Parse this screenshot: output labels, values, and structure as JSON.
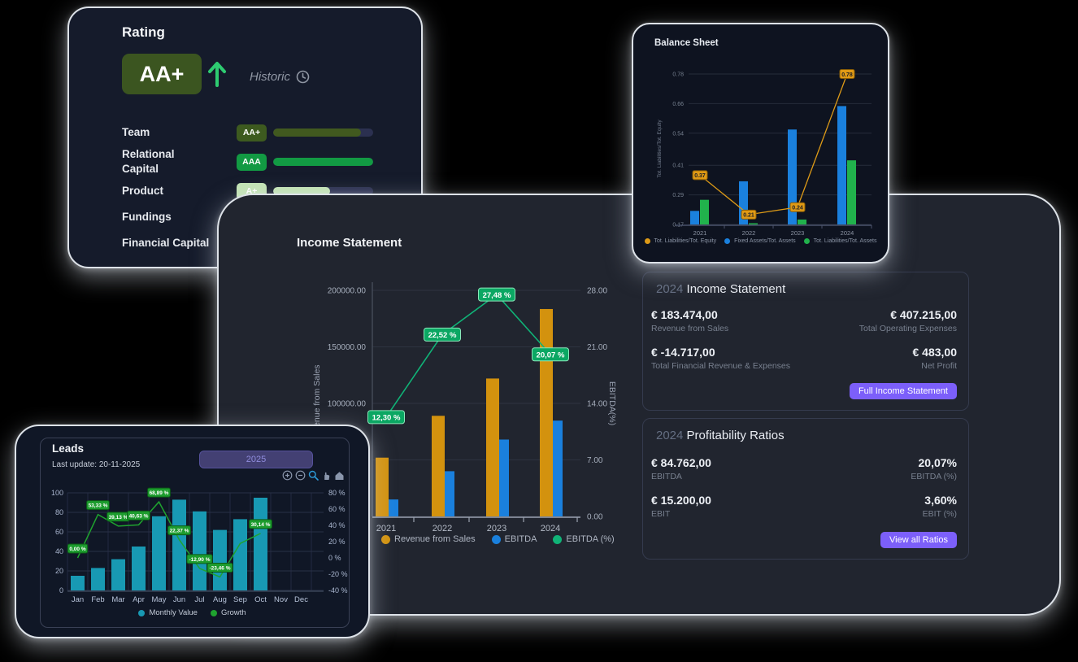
{
  "rating_card": {
    "title": "Rating",
    "main_grade": "AA+",
    "historic_label": "Historic",
    "main_badge_bg": "#3b5520",
    "arrow_color": "#2ecc71",
    "categories": [
      {
        "label": "Team",
        "grade": "AA+",
        "badge_bg": "#3d5a1f",
        "badge_text": "#ffffff",
        "bar_color": "#41591f",
        "fill_pct": 88
      },
      {
        "label": "Relational\nCapital",
        "grade": "AAA",
        "badge_bg": "#129a43",
        "badge_text": "#ffffff",
        "bar_color": "#129a43",
        "fill_pct": 100
      },
      {
        "label": "Product",
        "grade": "A+",
        "badge_bg": "#c3e3b5",
        "badge_text": "#ffffff",
        "bar_color": "#c3e3b5",
        "fill_pct": 57
      },
      {
        "label": "Fundings",
        "grade": null
      },
      {
        "label": "Financial Capital",
        "grade": null
      }
    ]
  },
  "balance_sheet_card": {
    "title": "Balance Sheet",
    "chart": {
      "type": "bar+line",
      "categories": [
        "2021",
        "2022",
        "2023",
        "2024"
      ],
      "y_axis_label": "Tot. Liabilities/Tot. Equity",
      "y_ticks": [
        "0.78",
        "0.66",
        "0.54",
        "0.41",
        "0.29",
        "0.17"
      ],
      "y_min": 0.17,
      "y_max": 0.78,
      "series": [
        {
          "name": "Tot. Liabilities/Tot. Equity",
          "type": "line",
          "color": "#dd9a17",
          "values": [
            0.37,
            0.21,
            0.24,
            0.78
          ],
          "point_labels": [
            "0.37",
            "0.21",
            "0.24",
            "0.78"
          ]
        },
        {
          "name": "Fixed Assets/Tot. Assets",
          "type": "bar",
          "color": "#1a80dd",
          "values": [
            0.225,
            0.345,
            0.555,
            0.65
          ]
        },
        {
          "name": "Tot. Liabilities/Tot. Assets",
          "type": "bar",
          "color": "#21b24c",
          "values": [
            0.27,
            0.175,
            0.19,
            0.43
          ]
        }
      ],
      "legend_position": "bottom"
    }
  },
  "income_card": {
    "title": "Income Statement",
    "accent_color": "#7c5ffa",
    "chart": {
      "type": "bar+line",
      "categories": [
        "2021",
        "2022",
        "2023",
        "2024"
      ],
      "left_axis": {
        "label": "Revenue from Sales",
        "ticks": [
          "200000.00",
          "150000.00",
          "100000.00",
          "50000.00",
          "0.00"
        ],
        "max": 200000
      },
      "right_axis": {
        "label": "EBITDA(%)",
        "ticks": [
          "28.00",
          "21.00",
          "14.00",
          "7.00",
          "0.00"
        ],
        "max": 28
      },
      "series": [
        {
          "name": "Revenue from Sales",
          "type": "bar",
          "axis": "left",
          "color": "#d3920e",
          "values": [
            52000,
            89000,
            122000,
            183474
          ]
        },
        {
          "name": "EBITDA",
          "type": "bar",
          "axis": "left",
          "color": "#1a80dd",
          "values": [
            15000,
            40000,
            68000,
            84762
          ]
        },
        {
          "name": "EBITDA (%)",
          "type": "line",
          "axis": "right",
          "color": "#10b377",
          "values": [
            12.3,
            22.52,
            27.48,
            20.07
          ],
          "point_labels": [
            "12,30 %",
            "22,52 %",
            "27,48 %",
            "20,07 %"
          ]
        }
      ],
      "legend_position": "bottom"
    },
    "panels": [
      {
        "year": "2024",
        "title": "Income Statement",
        "metrics": [
          {
            "value": "€ 183.474,00",
            "label": "Revenue from Sales"
          },
          {
            "value": "€ 407.215,00",
            "label": "Total Operating Expenses"
          },
          {
            "value": "€ -14.717,00",
            "label": "Total Financial Revenue & Expenses"
          },
          {
            "value": "€ 483,00",
            "label": "Net Profit"
          }
        ],
        "button": "Full Income Statement"
      },
      {
        "year": "2024",
        "title": "Profitability Ratios",
        "metrics": [
          {
            "value": "€ 84.762,00",
            "label": "EBITDA"
          },
          {
            "value": "20,07%",
            "label": "EBITDA (%)"
          },
          {
            "value": "€ 15.200,00",
            "label": "EBIT"
          },
          {
            "value": "3,60%",
            "label": "EBIT (%)"
          }
        ],
        "button": "View all Ratios"
      }
    ]
  },
  "leads_card": {
    "title": "Leads",
    "last_update": "Last update: 20-11-2025",
    "year_button": "2025",
    "toolbar_icons": [
      "zoom-in",
      "zoom-out",
      "box-zoom",
      "pan",
      "home"
    ],
    "chart": {
      "type": "bar+line",
      "categories": [
        "Jan",
        "Feb",
        "Mar",
        "Apr",
        "May",
        "Jun",
        "Jul",
        "Aug",
        "Sep",
        "Oct",
        "Nov",
        "Dec"
      ],
      "left_ticks": [
        "100",
        "80",
        "60",
        "40",
        "20",
        "0"
      ],
      "right_ticks": [
        "80 %",
        "60 %",
        "40 %",
        "20 %",
        "0 %",
        "-20 %",
        "-40 %"
      ],
      "series": [
        {
          "name": "Monthly Value",
          "type": "bar",
          "color": "#1899b3",
          "values": [
            15,
            23,
            32,
            45,
            76,
            93,
            81,
            62,
            73,
            95
          ]
        },
        {
          "name": "Growth",
          "type": "line",
          "color": "#1fa32f",
          "values": [
            0,
            53.33,
            39.13,
            40.63,
            68.89,
            22.37,
            -12.9,
            -23.46,
            17.74,
            30.14
          ],
          "point_labels": [
            "0,00 %",
            "53,33 %",
            "39,13 %",
            "40,63 %",
            "68,89 %",
            "22,37 %",
            "-12,90 %",
            "-23,46 %",
            null,
            "30,14 %"
          ]
        }
      ],
      "legend_position": "bottom"
    }
  }
}
